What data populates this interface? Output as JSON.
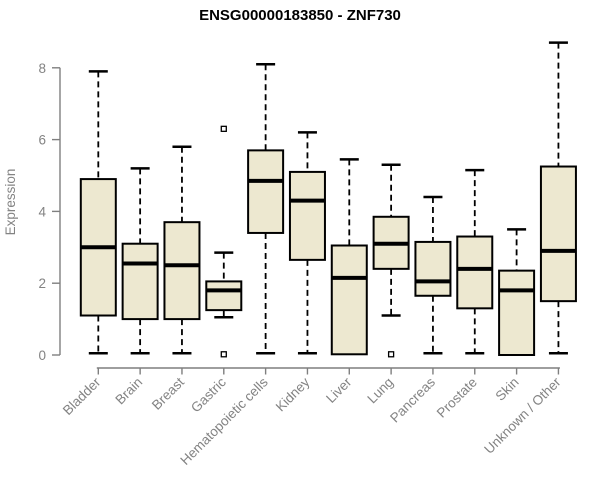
{
  "title": "ENSG00000183850 - ZNF730",
  "chart_data": {
    "type": "boxplot",
    "title": "ENSG00000183850 - ZNF730",
    "xlabel": "",
    "ylabel": "Expression",
    "ylim": [
      0,
      8.8
    ],
    "yticks": [
      0,
      2,
      4,
      6,
      8
    ],
    "grid": false,
    "legend": "none",
    "categories": [
      "Bladder",
      "Brain",
      "Breast",
      "Gastric",
      "Hematopoietic cells",
      "Kidney",
      "Liver",
      "Lung",
      "Pancreas",
      "Prostate",
      "Skin",
      "Unknown / Other"
    ],
    "series": [
      {
        "name": "Bladder",
        "min": 0.05,
        "q1": 1.1,
        "median": 3.0,
        "q3": 4.9,
        "max": 7.9,
        "outliers": []
      },
      {
        "name": "Brain",
        "min": 0.05,
        "q1": 1.0,
        "median": 2.55,
        "q3": 3.1,
        "max": 5.2,
        "outliers": []
      },
      {
        "name": "Breast",
        "min": 0.05,
        "q1": 1.0,
        "median": 2.5,
        "q3": 3.7,
        "max": 5.8,
        "outliers": []
      },
      {
        "name": "Gastric",
        "min": 1.05,
        "q1": 1.25,
        "median": 1.8,
        "q3": 2.05,
        "max": 2.85,
        "outliers": [
          6.3,
          0.02
        ]
      },
      {
        "name": "Hematopoietic cells",
        "min": 0.05,
        "q1": 3.4,
        "median": 4.85,
        "q3": 5.7,
        "max": 8.1,
        "outliers": []
      },
      {
        "name": "Kidney",
        "min": 0.05,
        "q1": 2.65,
        "median": 4.3,
        "q3": 5.1,
        "max": 6.2,
        "outliers": []
      },
      {
        "name": "Liver",
        "min": 0.02,
        "q1": 0.02,
        "median": 2.15,
        "q3": 3.05,
        "max": 5.45,
        "outliers": []
      },
      {
        "name": "Lung",
        "min": 1.1,
        "q1": 2.4,
        "median": 3.1,
        "q3": 3.85,
        "max": 5.3,
        "outliers": [
          0.02
        ]
      },
      {
        "name": "Pancreas",
        "min": 0.05,
        "q1": 1.65,
        "median": 2.05,
        "q3": 3.15,
        "max": 4.4,
        "outliers": []
      },
      {
        "name": "Prostate",
        "min": 0.05,
        "q1": 1.3,
        "median": 2.4,
        "q3": 3.3,
        "max": 5.15,
        "outliers": []
      },
      {
        "name": "Skin",
        "min": 0.0,
        "q1": 0.0,
        "median": 1.8,
        "q3": 2.35,
        "max": 3.5,
        "outliers": []
      },
      {
        "name": "Unknown / Other",
        "min": 0.05,
        "q1": 1.5,
        "median": 2.9,
        "q3": 5.25,
        "max": 8.7,
        "outliers": []
      }
    ],
    "colors": {
      "background": "#FFFFFF",
      "box_fill": "#EDE8D0",
      "box_border": "#000000",
      "median": "#000000",
      "whisker": "#000000",
      "outlier": "#000000",
      "axis": "#7F7F7F",
      "tick_label": "#838383",
      "title": "#000000"
    }
  }
}
